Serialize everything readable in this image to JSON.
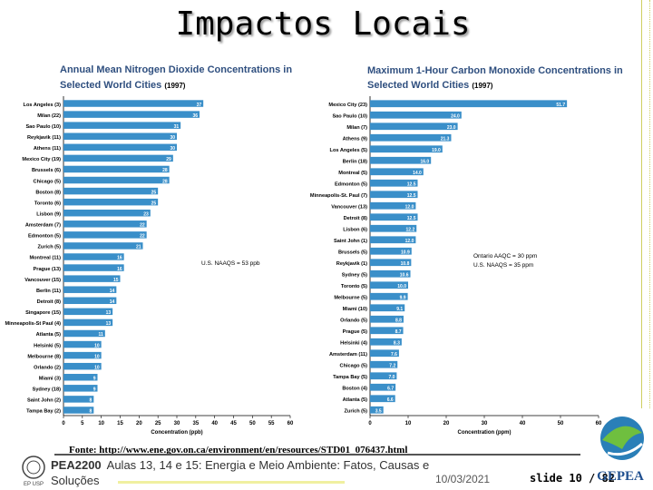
{
  "slide": {
    "title": "Impactos Locais",
    "source": "Fonte: http://www.ene.gov.on.ca/environment/en/resources/STD01_076437.html",
    "footer_code": "PEA2200",
    "footer_text": "Aulas 13, 14 e 15: Energia e Meio Ambiente: Fatos, Causas e Soluções",
    "date": "10/03/2021",
    "slide_number": "slide 10 / 82",
    "logo_left_text": "EP USP",
    "logo_right_text": "GEPEA"
  },
  "colors": {
    "bar": "#3a8fc9",
    "title": "#2f4f7f"
  },
  "chart_data": [
    {
      "type": "bar",
      "orientation": "horizontal",
      "title": "Annual Mean Nitrogen Dioxide Concentrations in Selected World Cities",
      "year": "(1997)",
      "xlabel": "Concentration (ppb)",
      "xlim": [
        0,
        60
      ],
      "xticks": [
        "0",
        "5",
        "10",
        "15",
        "20",
        "25",
        "30",
        "35",
        "40",
        "45",
        "50",
        "55",
        "60"
      ],
      "reference_note": "U.S. NAAQS = 53 ppb",
      "categories": [
        "Los Angeles (3)",
        "Milan (22)",
        "Sao Paulo (10)",
        "Reykjavik (11)",
        "Athens (11)",
        "Mexico City (19)",
        "Brussels (6)",
        "Chicago (5)",
        "Boston (8)",
        "Toronto (6)",
        "Lisbon (9)",
        "Amsterdam (7)",
        "Edmonton (5)",
        "Zurich (5)",
        "Montreal (11)",
        "Prague (13)",
        "Vancouver (15)",
        "Berlin (11)",
        "Detroit (8)",
        "Singapore (15)",
        "Minneapolis-St Paul (4)",
        "Atlanta (5)",
        "Helsinki (5)",
        "Melbourne (8)",
        "Orlando (2)",
        "Miami (3)",
        "Sydney (18)",
        "Saint John (2)",
        "Tampa Bay (2)"
      ],
      "values": [
        37,
        36,
        31,
        30,
        30,
        29,
        28,
        28,
        25,
        25,
        23,
        22,
        22,
        21,
        16,
        16,
        15,
        14,
        14,
        13,
        13,
        11,
        10,
        10,
        10,
        9,
        9,
        8,
        8
      ],
      "value_labels": [
        "37",
        "36",
        "31",
        "30",
        "30",
        "29",
        "28",
        "28",
        "25",
        "25",
        "23",
        "22",
        "22",
        "21",
        "16",
        "16",
        "15",
        "14",
        "14",
        "13",
        "13",
        "11",
        "10",
        "10",
        "10",
        "9",
        "9",
        "8",
        "8"
      ]
    },
    {
      "type": "bar",
      "orientation": "horizontal",
      "title": "Maximum 1-Hour Carbon Monoxide Concentrations in Selected World Cities",
      "year": "(1997)",
      "xlabel": "Concentration (ppm)",
      "xlim": [
        0,
        60
      ],
      "xticks": [
        "0",
        "10",
        "20",
        "30",
        "40",
        "50",
        "60"
      ],
      "reference_note": [
        "Ontario AAQC = 30 ppm",
        "U.S. NAAQS = 35 ppm"
      ],
      "categories": [
        "Mexico City (23)",
        "Sao Paulo (10)",
        "Milan (7)",
        "Athens (9)",
        "Los Angeles (5)",
        "Berlin (18)",
        "Montreal (5)",
        "Edmonton (5)",
        "Minneapolis-St. Paul (7)",
        "Vancouver (13)",
        "Detroit (8)",
        "Lisbon (6)",
        "Saint John (1)",
        "Brussels (5)",
        "Reykjavik (1)",
        "Sydney (5)",
        "Toronto (5)",
        "Melbourne (5)",
        "Miami (10)",
        "Orlando (5)",
        "Prague (5)",
        "Helsinki (4)",
        "Amsterdam (11)",
        "Chicago (5)",
        "Tampa Bay (5)",
        "Boston (4)",
        "Atlanta (5)",
        "Zurich (5)"
      ],
      "values": [
        51.7,
        24.0,
        23.0,
        21.3,
        19.0,
        16.0,
        14.0,
        12.5,
        12.5,
        12.0,
        12.5,
        12.2,
        12.0,
        10.9,
        10.8,
        10.6,
        10.0,
        9.9,
        9.1,
        8.8,
        8.7,
        8.3,
        7.6,
        7.2,
        7.0,
        6.7,
        6.6,
        3.5
      ],
      "value_labels": [
        "51.7",
        "24.0",
        "23.0",
        "21.3",
        "19.0",
        "16.0",
        "14.0",
        "12.5",
        "12.5",
        "12.0",
        "12.5",
        "12.2",
        "12.0",
        "10.9",
        "10.8",
        "10.6",
        "10.0",
        "9.9",
        "9.1",
        "8.8",
        "8.7",
        "8.3",
        "7.6",
        "7.2",
        "7.0",
        "6.7",
        "6.6",
        "3.5"
      ]
    }
  ]
}
